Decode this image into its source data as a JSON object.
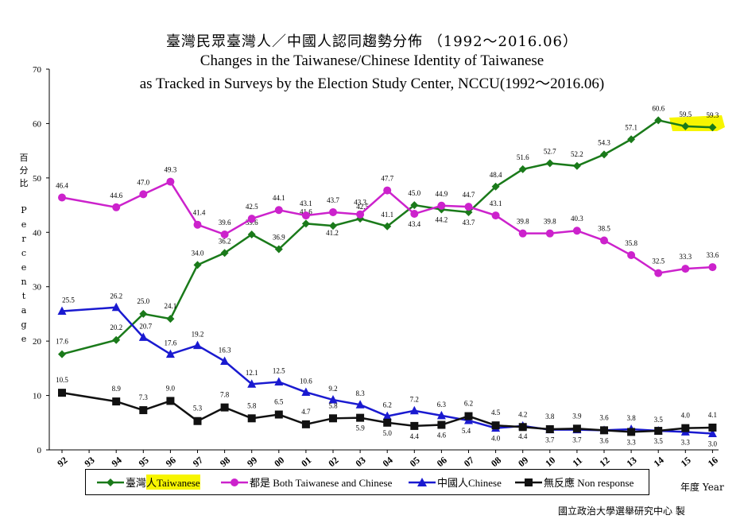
{
  "chart_data": {
    "type": "line",
    "title": "臺灣民眾臺灣人／中國人認同趨勢分佈 （1992～2016.06）",
    "subtitle_line1": "Changes in the Taiwanese/Chinese Identity of Taiwanese",
    "subtitle_line2": "as Tracked in Surveys by the Election Study Center, NCCU(1992～2016.06)",
    "ylabel_cn": [
      "百",
      "分",
      "比"
    ],
    "ylabel_en": [
      "P",
      "e",
      "r",
      "c",
      "e",
      "n",
      "t",
      "a",
      "g",
      "e"
    ],
    "xlabel": "年度 Year",
    "ylim": [
      0,
      70
    ],
    "yticks": [
      "0",
      "10",
      "20",
      "30",
      "40",
      "50",
      "60",
      "70"
    ],
    "x": [
      "92",
      "93",
      "94",
      "95",
      "96",
      "97",
      "98",
      "99",
      "00",
      "01",
      "02",
      "03",
      "04",
      "05",
      "06",
      "07",
      "08",
      "09",
      "10",
      "11",
      "12",
      "13",
      "14",
      "15",
      "16"
    ],
    "series": [
      {
        "name_prefix": "臺灣",
        "name_highlight": "人Taiwanese",
        "name": "臺灣人Taiwanese",
        "color": "#1a7a1a",
        "marker": "diamond",
        "points": [
          {
            "x": 92,
            "y": 17.6,
            "label": "17.6"
          },
          {
            "x": 94,
            "y": 20.2,
            "label": "20.2"
          },
          {
            "x": 95,
            "y": 25.0,
            "label": "25.0"
          },
          {
            "x": 96,
            "y": 24.1,
            "label": "24.1"
          },
          {
            "x": 97,
            "y": 34.0,
            "label": "34.0"
          },
          {
            "x": 98,
            "y": 36.2,
            "label": "36.2"
          },
          {
            "x": 99,
            "y": 39.6,
            "label": "39.6"
          },
          {
            "x": 100,
            "y": 36.9,
            "label": "36.9"
          },
          {
            "x": 101,
            "y": 41.6,
            "label": "41.6"
          },
          {
            "x": 102,
            "y": 41.2,
            "label": "41.2"
          },
          {
            "x": 103,
            "y": 42.5,
            "label": "42.5"
          },
          {
            "x": 104,
            "y": 41.1,
            "label": "41.1"
          },
          {
            "x": 105,
            "y": 45.0,
            "label": "45.0"
          },
          {
            "x": 106,
            "y": 44.2,
            "label": "44.2"
          },
          {
            "x": 107,
            "y": 43.7,
            "label": "43.7"
          },
          {
            "x": 108,
            "y": 48.4,
            "label": "48.4"
          },
          {
            "x": 109,
            "y": 51.6,
            "label": "51.6"
          },
          {
            "x": 110,
            "y": 52.7,
            "label": "52.7"
          },
          {
            "x": 111,
            "y": 52.2,
            "label": "52.2"
          },
          {
            "x": 112,
            "y": 54.3,
            "label": "54.3"
          },
          {
            "x": 113,
            "y": 57.1,
            "label": "57.1"
          },
          {
            "x": 114,
            "y": 60.6,
            "label": "60.6"
          },
          {
            "x": 115,
            "y": 59.5,
            "label": "59.5"
          },
          {
            "x": 116,
            "y": 59.3,
            "label": "59.3"
          }
        ]
      },
      {
        "name": "都是 Both Taiwanese and Chinese",
        "color": "#cc22cc",
        "marker": "circle",
        "points": [
          {
            "x": 92,
            "y": 46.4,
            "label": "46.4"
          },
          {
            "x": 94,
            "y": 44.6,
            "label": "44.6"
          },
          {
            "x": 95,
            "y": 47.0,
            "label": "47.0"
          },
          {
            "x": 96,
            "y": 49.3,
            "label": "49.3"
          },
          {
            "x": 97,
            "y": 41.4,
            "label": "41.4"
          },
          {
            "x": 98,
            "y": 39.6,
            "label": "39.6"
          },
          {
            "x": 99,
            "y": 42.5,
            "label": "42.5"
          },
          {
            "x": 100,
            "y": 44.1,
            "label": "44.1"
          },
          {
            "x": 101,
            "y": 43.1,
            "label": "43.1"
          },
          {
            "x": 102,
            "y": 43.7,
            "label": "43.7"
          },
          {
            "x": 103,
            "y": 43.3,
            "label": "43.3"
          },
          {
            "x": 104,
            "y": 47.7,
            "label": "47.7"
          },
          {
            "x": 105,
            "y": 43.4,
            "label": "43.4"
          },
          {
            "x": 106,
            "y": 44.9,
            "label": "44.9"
          },
          {
            "x": 107,
            "y": 44.7,
            "label": "44.7"
          },
          {
            "x": 108,
            "y": 43.1,
            "label": "43.1"
          },
          {
            "x": 109,
            "y": 39.8,
            "label": "39.8"
          },
          {
            "x": 110,
            "y": 39.8,
            "label": "39.8"
          },
          {
            "x": 111,
            "y": 40.3,
            "label": "40.3"
          },
          {
            "x": 112,
            "y": 38.5,
            "label": "38.5"
          },
          {
            "x": 113,
            "y": 35.8,
            "label": "35.8"
          },
          {
            "x": 114,
            "y": 32.5,
            "label": "32.5"
          },
          {
            "x": 115,
            "y": 33.3,
            "label": "33.3"
          },
          {
            "x": 116,
            "y": 33.6,
            "label": "33.6"
          }
        ]
      },
      {
        "name": "中國人Chinese",
        "color": "#1a1ad0",
        "marker": "triangle",
        "points": [
          {
            "x": 92,
            "y": 25.5,
            "label": "25.5"
          },
          {
            "x": 94,
            "y": 26.2,
            "label": "26.2"
          },
          {
            "x": 95,
            "y": 20.7,
            "label": "20.7"
          },
          {
            "x": 96,
            "y": 17.6,
            "label": "17.6"
          },
          {
            "x": 97,
            "y": 19.2,
            "label": "19.2"
          },
          {
            "x": 98,
            "y": 16.3,
            "label": "16.3"
          },
          {
            "x": 99,
            "y": 12.1,
            "label": "12.1"
          },
          {
            "x": 100,
            "y": 12.5,
            "label": "12.5"
          },
          {
            "x": 101,
            "y": 10.6,
            "label": "10.6"
          },
          {
            "x": 102,
            "y": 9.2,
            "label": "9.2"
          },
          {
            "x": 103,
            "y": 8.3,
            "label": "8.3"
          },
          {
            "x": 104,
            "y": 6.2,
            "label": "6.2"
          },
          {
            "x": 105,
            "y": 7.2,
            "label": "7.2"
          },
          {
            "x": 106,
            "y": 6.3,
            "label": "6.3"
          },
          {
            "x": 107,
            "y": 5.4,
            "label": "5.4"
          },
          {
            "x": 108,
            "y": 4.0,
            "label": "4.0"
          },
          {
            "x": 109,
            "y": 4.4,
            "label": "4.4"
          },
          {
            "x": 110,
            "y": 3.7,
            "label": "3.7"
          },
          {
            "x": 111,
            "y": 3.7,
            "label": "3.7"
          },
          {
            "x": 112,
            "y": 3.6,
            "label": "3.6"
          },
          {
            "x": 113,
            "y": 3.8,
            "label": "3.8"
          },
          {
            "x": 114,
            "y": 3.5,
            "label": "3.5"
          },
          {
            "x": 115,
            "y": 3.3,
            "label": "3.3"
          },
          {
            "x": 116,
            "y": 3.0,
            "label": "3.0"
          }
        ]
      },
      {
        "name": "無反應 Non response",
        "color": "#111111",
        "marker": "square",
        "points": [
          {
            "x": 92,
            "y": 10.5,
            "label": "10.5"
          },
          {
            "x": 94,
            "y": 8.9,
            "label": "8.9"
          },
          {
            "x": 95,
            "y": 7.3,
            "label": "7.3"
          },
          {
            "x": 96,
            "y": 9.0,
            "label": "9.0"
          },
          {
            "x": 97,
            "y": 5.3,
            "label": "5.3"
          },
          {
            "x": 98,
            "y": 7.8,
            "label": "7.8"
          },
          {
            "x": 99,
            "y": 5.8,
            "label": "5.8"
          },
          {
            "x": 100,
            "y": 6.5,
            "label": "6.5"
          },
          {
            "x": 101,
            "y": 4.7,
            "label": "4.7"
          },
          {
            "x": 102,
            "y": 5.8,
            "label": "5.8"
          },
          {
            "x": 103,
            "y": 5.9,
            "label": "5.9"
          },
          {
            "x": 104,
            "y": 5.0,
            "label": "5.0"
          },
          {
            "x": 105,
            "y": 4.4,
            "label": "4.4"
          },
          {
            "x": 106,
            "y": 4.6,
            "label": "4.6"
          },
          {
            "x": 107,
            "y": 6.2,
            "label": "6.2"
          },
          {
            "x": 108,
            "y": 4.5,
            "label": "4.5"
          },
          {
            "x": 109,
            "y": 4.2,
            "label": "4.2"
          },
          {
            "x": 110,
            "y": 3.8,
            "label": "3.8"
          },
          {
            "x": 111,
            "y": 3.9,
            "label": "3.9"
          },
          {
            "x": 112,
            "y": 3.6,
            "label": "3.6"
          },
          {
            "x": 113,
            "y": 3.3,
            "label": "3.3"
          },
          {
            "x": 114,
            "y": 3.5,
            "label": "3.5"
          },
          {
            "x": 115,
            "y": 4.0,
            "label": "4.0"
          },
          {
            "x": 116,
            "y": 4.1,
            "label": "4.1"
          }
        ]
      }
    ],
    "grid": false,
    "legend_position": "bottom",
    "highlight_color": "#f7f500"
  },
  "credit": "國立政治大學選舉研究中心 製"
}
